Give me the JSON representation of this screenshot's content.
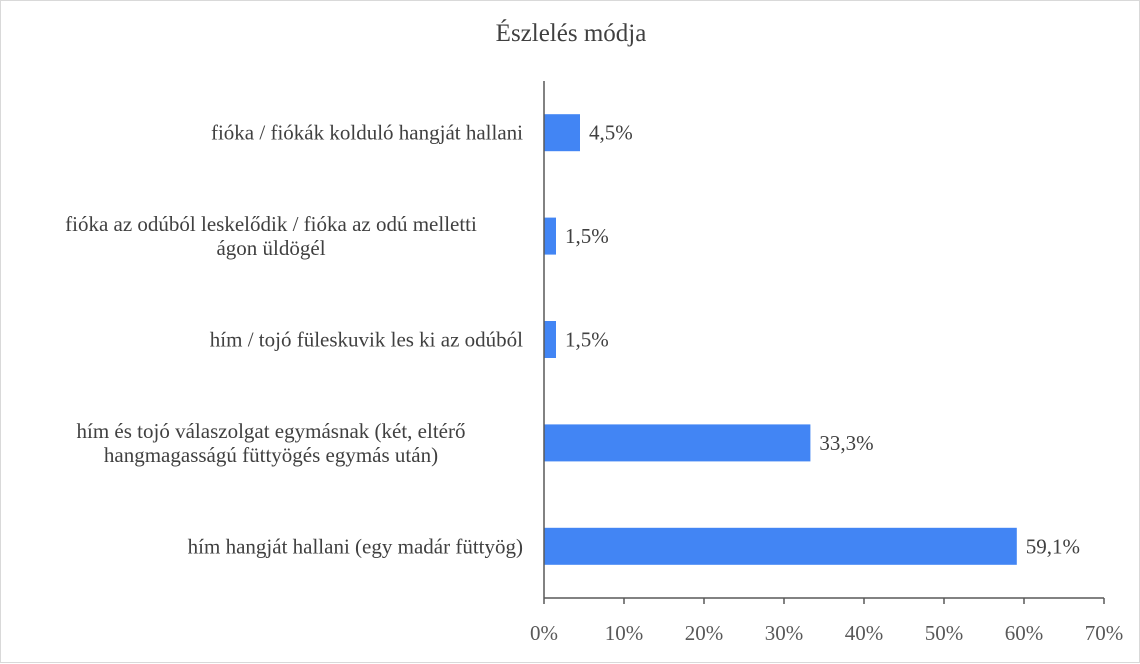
{
  "chart_data": {
    "type": "bar",
    "orientation": "horizontal",
    "title": "Észlelés módja",
    "categories": [
      [
        "fióka / fiókák kolduló hangját hallani"
      ],
      [
        "fióka az odúból leskelődik / fióka az odú melletti",
        "ágon üldögél"
      ],
      [
        "hím / tojó füleskuvik les ki az odúból"
      ],
      [
        "hím és tojó válaszolgat egymásnak (két, eltérő",
        "hangmagasságú füttyögés egymás után)"
      ],
      [
        "hím hangját hallani (egy madár füttyög)"
      ]
    ],
    "values": [
      4.5,
      1.5,
      1.5,
      33.3,
      59.1
    ],
    "value_labels": [
      "4,5%",
      "1,5%",
      "1,5%",
      "33,3%",
      "59,1%"
    ],
    "xlim": [
      0,
      70
    ],
    "x_ticks": [
      0,
      10,
      20,
      30,
      40,
      50,
      60,
      70
    ],
    "x_tick_labels": [
      "0%",
      "10%",
      "20%",
      "30%",
      "40%",
      "50%",
      "60%",
      "70%"
    ],
    "bar_color": "#4285f4",
    "grid": false,
    "legend": "none"
  }
}
